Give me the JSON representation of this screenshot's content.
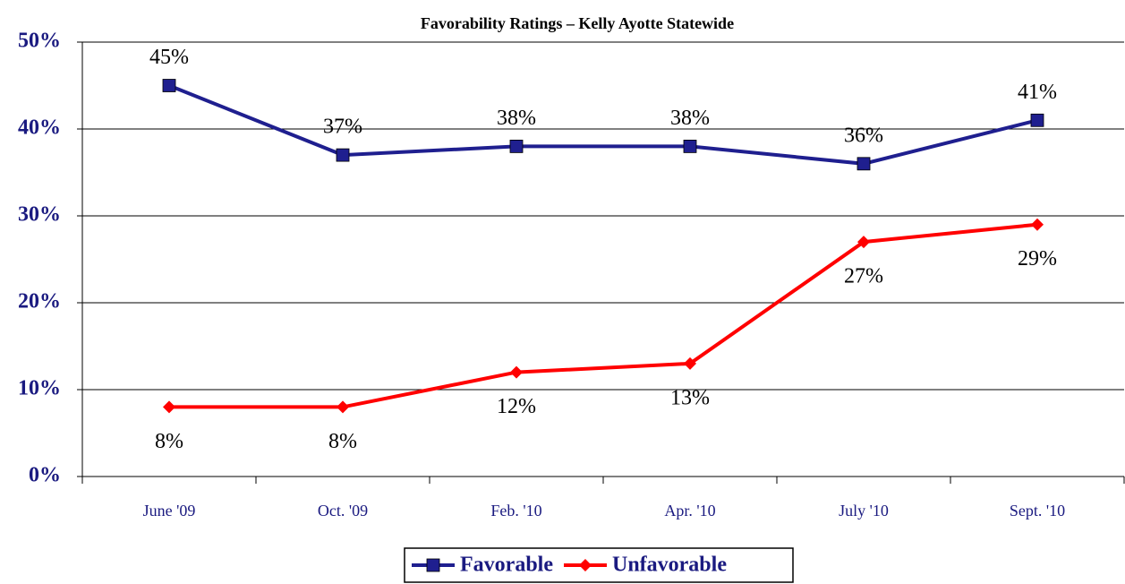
{
  "chart_data": {
    "type": "line",
    "title": "Favorability Ratings – Kelly Ayotte Statewide",
    "categories": [
      "June '09",
      "Oct. '09",
      "Feb. '10",
      "Apr. '10",
      "July '10",
      "Sept. '10"
    ],
    "series": [
      {
        "name": "Favorable",
        "color": "#1f1f8f",
        "marker": "square",
        "values": [
          45,
          37,
          38,
          38,
          36,
          41
        ],
        "value_labels": [
          "45%",
          "37%",
          "38%",
          "38%",
          "36%",
          "41%"
        ]
      },
      {
        "name": "Unfavorable",
        "color": "#ff0000",
        "marker": "diamond",
        "values": [
          8,
          8,
          12,
          13,
          27,
          29
        ],
        "value_labels": [
          "8%",
          "8%",
          "12%",
          "13%",
          "27%",
          "29%"
        ]
      }
    ],
    "ylim": [
      0,
      50
    ],
    "yticks": [
      {
        "value": 0,
        "label": "0%"
      },
      {
        "value": 10,
        "label": "10%"
      },
      {
        "value": 20,
        "label": "20%"
      },
      {
        "value": 30,
        "label": "30%"
      },
      {
        "value": 40,
        "label": "40%"
      },
      {
        "value": 50,
        "label": "50%"
      }
    ],
    "grid": true,
    "legend": "bottom"
  }
}
